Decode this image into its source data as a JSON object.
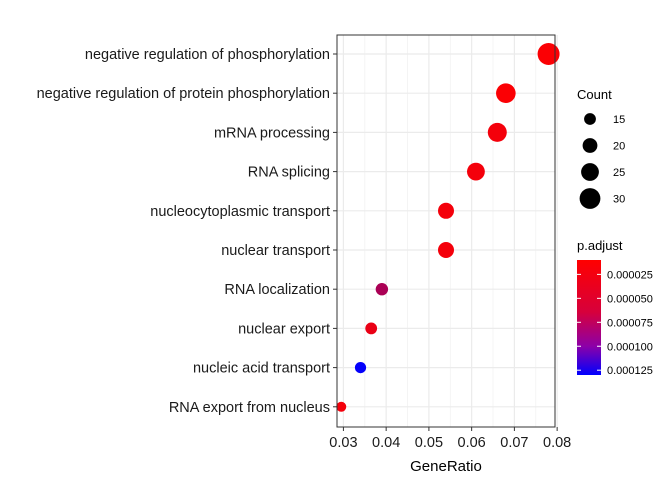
{
  "chart_data": {
    "type": "scatter",
    "xlabel": "GeneRatio",
    "xlim": [
      0.0285,
      0.0795
    ],
    "xticks": [
      "0.03",
      "0.04",
      "0.05",
      "0.06",
      "0.07",
      "0.08"
    ],
    "grid": true,
    "points": [
      {
        "term": "negative regulation of phosphorylation",
        "gene_ratio": 0.078,
        "count": 32,
        "p_adjust": 1.2e-05
      },
      {
        "term": "negative regulation of protein phosphorylation",
        "gene_ratio": 0.068,
        "count": 28,
        "p_adjust": 1.2e-05
      },
      {
        "term": "mRNA processing",
        "gene_ratio": 0.066,
        "count": 27,
        "p_adjust": 1.5e-05
      },
      {
        "term": "RNA splicing",
        "gene_ratio": 0.061,
        "count": 25,
        "p_adjust": 1.5e-05
      },
      {
        "term": "nucleocytoplasmic transport",
        "gene_ratio": 0.054,
        "count": 22,
        "p_adjust": 1.5e-05
      },
      {
        "term": "nuclear transport",
        "gene_ratio": 0.054,
        "count": 22,
        "p_adjust": 1.5e-05
      },
      {
        "term": "RNA localization",
        "gene_ratio": 0.039,
        "count": 16,
        "p_adjust": 5e-05
      },
      {
        "term": "nuclear export",
        "gene_ratio": 0.0365,
        "count": 15,
        "p_adjust": 2e-05
      },
      {
        "term": "nucleic acid transport",
        "gene_ratio": 0.034,
        "count": 14,
        "p_adjust": 0.000128
      },
      {
        "term": "RNA export from nucleus",
        "gene_ratio": 0.0295,
        "count": 12,
        "p_adjust": 1.5e-05
      }
    ],
    "legend": {
      "size": {
        "title": "Count",
        "items": [
          {
            "label": "15",
            "value": 15
          },
          {
            "label": "20",
            "value": 20
          },
          {
            "label": "25",
            "value": 25
          },
          {
            "label": "30",
            "value": 30
          }
        ]
      },
      "color": {
        "title": "p.adjust",
        "range": [
          1e-05,
          0.00013
        ],
        "low_color": "#ff0000",
        "high_color": "#0000ff",
        "ticks": [
          {
            "label": "0.000025",
            "value": 2.5e-05
          },
          {
            "label": "0.000050",
            "value": 5e-05
          },
          {
            "label": "0.000075",
            "value": 7.5e-05
          },
          {
            "label": "0.000100",
            "value": 0.0001
          },
          {
            "label": "0.000125",
            "value": 0.000125
          }
        ]
      }
    }
  }
}
